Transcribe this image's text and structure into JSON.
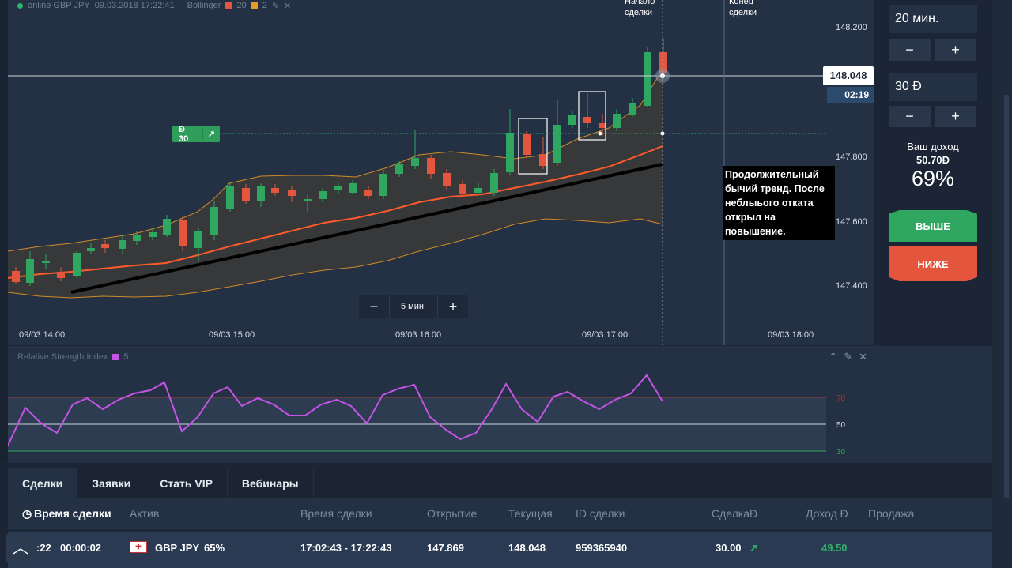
{
  "header": {
    "instrument": "online GBP JPY",
    "datetime": "09.03.2018 17:22:41",
    "indicator": "Bollinger",
    "period": "20",
    "deviation": "2"
  },
  "chart": {
    "y_ticks": [
      "148.200",
      "147.800",
      "147.600",
      "147.400"
    ],
    "x_ticks": [
      "09/03 14:00",
      "09/03 15:00",
      "09/03 16:00",
      "09/03 17:00",
      "09/03 18:00"
    ],
    "start_label_line1": "Начало",
    "start_label_line2": "сделки",
    "end_label_line1": "Конец",
    "end_label_line2": "сделки",
    "current_price": "148.048",
    "countdown": "02:19",
    "zoom_label": "5 мин.",
    "deal_badge": "Đ 30",
    "annotation": "Продолжительный бычий тренд. После неблыього отката открыл на повышение.",
    "colors": {
      "bull": "#2fa760",
      "bear": "#e4553e",
      "band": "#d08a2a",
      "mid": "#ff5a2a"
    }
  },
  "rsi": {
    "title": "Relative Strength Index",
    "period": "5",
    "levels": [
      "70",
      "50",
      "30"
    ],
    "color": "#c553e6"
  },
  "sidebar": {
    "time_value": "20 мин.",
    "amount_value": "30 Đ",
    "minus": "−",
    "plus": "+",
    "income_title": "Ваш доход",
    "income_value": "50.70Đ",
    "income_percent": "69%",
    "up_label": "ВЫШЕ",
    "down_label": "НИЖЕ"
  },
  "tabs": [
    "Сделки",
    "Заявки",
    "Стать VIP",
    "Вебинары"
  ],
  "table": {
    "headers": [
      "Время сделки",
      "Актив",
      "Время сделки",
      "Открытие",
      "Текущая",
      "ID сделки",
      "СделкаĐ",
      "Доход Đ",
      "Продажа"
    ],
    "row": {
      "time_left": ":22",
      "timer": "00:00:02",
      "asset": "GBP JPY",
      "percent": "65%",
      "period": "17:02:43 - 17:22:43",
      "open": "147.869",
      "current": "148.048",
      "id": "959365940",
      "amount": "30.00",
      "income": "49.50"
    }
  }
}
